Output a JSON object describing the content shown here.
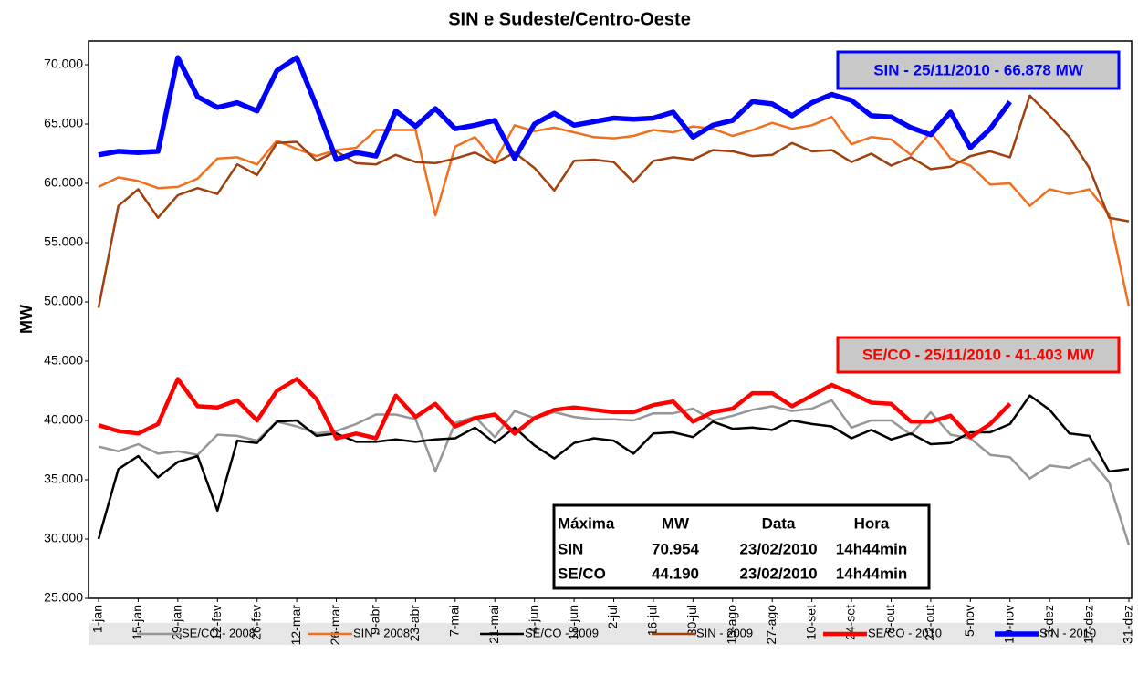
{
  "chart_data": {
    "type": "line",
    "title": "SIN e Sudeste/Centro-Oeste",
    "y_label": "MW",
    "categories": [
      "1-jan",
      null,
      "15-jan",
      null,
      "29-jan",
      null,
      "12-fev",
      null,
      "26-fev",
      null,
      "12-mar",
      null,
      "26-mar",
      null,
      "9-abr",
      null,
      "23-abr",
      null,
      "7-mai",
      null,
      "21-mai",
      null,
      "4-jun",
      null,
      "18-jun",
      null,
      "2-jul",
      null,
      "16-jul",
      null,
      "30-jul",
      null,
      "13-ago",
      null,
      "27-ago",
      null,
      "10-set",
      null,
      "24-set",
      null,
      "8-out",
      null,
      "22-out",
      null,
      "5-nov",
      null,
      "19-nov",
      null,
      "3-dez",
      null,
      "17-dez",
      null,
      "31-dez"
    ],
    "ylim": [
      25000,
      72000
    ],
    "yticks": [
      {
        "value": 25000,
        "label": "25.000"
      },
      {
        "value": 30000,
        "label": "30.000"
      },
      {
        "value": 35000,
        "label": "35.000"
      },
      {
        "value": 40000,
        "label": "40.000"
      },
      {
        "value": 45000,
        "label": "45.000"
      },
      {
        "value": 50000,
        "label": "50.000"
      },
      {
        "value": 55000,
        "label": "55.000"
      },
      {
        "value": 60000,
        "label": "60.000"
      },
      {
        "value": 65000,
        "label": "65.000"
      },
      {
        "value": 70000,
        "label": "70.000"
      }
    ],
    "grid": false,
    "legend": "bottom",
    "series": [
      {
        "name": "SE/CO - 2008",
        "color": "#969696",
        "width": 2.5,
        "values": [
          37800,
          37400,
          38000,
          37200,
          37400,
          37100,
          38800,
          38700,
          38300,
          39900,
          39500,
          38900,
          39100,
          39700,
          40500,
          40500,
          40100,
          35700,
          39800,
          40300,
          38600,
          40800,
          40200,
          40700,
          40300,
          40100,
          40100,
          40000,
          40600,
          40600,
          41000,
          40000,
          40400,
          40900,
          41200,
          40800,
          41000,
          41700,
          39400,
          40000,
          40000,
          38800,
          40700,
          38800,
          38500,
          37100,
          36900,
          35100,
          36200,
          36000,
          36800,
          34800,
          29500
        ]
      },
      {
        "name": "SIN - 2008",
        "color": "#f07020",
        "width": 2.5,
        "values": [
          59700,
          60500,
          60200,
          59600,
          59700,
          60400,
          62100,
          62200,
          61600,
          63600,
          62900,
          62300,
          62800,
          63000,
          64500,
          64500,
          64500,
          57300,
          63100,
          63900,
          61800,
          64900,
          64400,
          64700,
          64300,
          63900,
          63800,
          64000,
          64500,
          64300,
          64800,
          64600,
          64000,
          64500,
          65100,
          64600,
          64900,
          65600,
          63300,
          63900,
          63700,
          62400,
          64300,
          62100,
          61500,
          59900,
          60000,
          58100,
          59500,
          59100,
          59500,
          57400,
          49600
        ]
      },
      {
        "name": "SE/CO - 2009",
        "color": "#000000",
        "width": 2.5,
        "values": [
          30000,
          35900,
          37000,
          35200,
          36500,
          37000,
          32400,
          38300,
          38100,
          39900,
          40000,
          38700,
          38900,
          38200,
          38200,
          38400,
          38200,
          38400,
          38500,
          39400,
          38100,
          39400,
          37900,
          36800,
          38100,
          38500,
          38300,
          37200,
          38900,
          39000,
          38600,
          39900,
          39300,
          39400,
          39200,
          40000,
          39700,
          39500,
          38500,
          39200,
          38400,
          38900,
          38000,
          38100,
          39000,
          39000,
          39700,
          42100,
          40900,
          38900,
          38700,
          35700,
          35900
        ]
      },
      {
        "name": "SIN - 2009",
        "color": "#a0410d",
        "width": 2.5,
        "values": [
          49500,
          58100,
          59500,
          57100,
          59000,
          59600,
          59100,
          61600,
          60700,
          63400,
          63500,
          61900,
          62700,
          61700,
          61600,
          62400,
          61800,
          61700,
          62100,
          62600,
          61700,
          62600,
          61300,
          59400,
          61900,
          62000,
          61800,
          60100,
          61900,
          62200,
          62000,
          62800,
          62700,
          62300,
          62400,
          63400,
          62700,
          62800,
          61800,
          62500,
          61500,
          62200,
          61200,
          61400,
          62300,
          62700,
          62200,
          67400,
          65700,
          63900,
          61300,
          57100,
          56800
        ]
      },
      {
        "name": "SE/CO - 2010",
        "color": "#ff0000",
        "width": 4.5,
        "values": [
          39600,
          39100,
          38900,
          39700,
          43500,
          41200,
          41100,
          41700,
          40000,
          42500,
          43500,
          41800,
          38500,
          38900,
          38500,
          42100,
          40300,
          41400,
          39500,
          40200,
          40500,
          38900,
          40200,
          40900,
          41100,
          40900,
          40700,
          40700,
          41300,
          41600,
          39900,
          40700,
          41000,
          42300,
          42300,
          41200,
          42100,
          43000,
          42300,
          41500,
          41400,
          39900,
          39900,
          40400,
          38600,
          39700,
          41403,
          null,
          null,
          null,
          null,
          null,
          null
        ]
      },
      {
        "name": "SIN - 2010",
        "color": "#0000ff",
        "width": 5.5,
        "values": [
          62400,
          62700,
          62600,
          62700,
          70600,
          67300,
          66400,
          66800,
          66100,
          69500,
          70600,
          66500,
          62000,
          62600,
          62300,
          66100,
          64800,
          66300,
          64600,
          64900,
          65300,
          62100,
          65000,
          65900,
          64900,
          65200,
          65500,
          65400,
          65500,
          66000,
          63900,
          64900,
          65300,
          66900,
          66700,
          65700,
          66800,
          67500,
          67000,
          65700,
          65600,
          64700,
          64100,
          66000,
          63000,
          64600,
          66878,
          null,
          null,
          null,
          null,
          null,
          null
        ]
      }
    ],
    "annotations": [
      {
        "text": "SIN - 25/11/2010 - 66.878 MW",
        "color": "#0000ff"
      },
      {
        "text": "SE/CO - 25/11/2010 - 41.403 MW",
        "color": "#ff0000"
      }
    ],
    "table": {
      "header": [
        "Máxima",
        "MW",
        "Data",
        "Hora"
      ],
      "rows": [
        [
          "SIN",
          "70.954",
          "23/02/2010",
          "14h44min"
        ],
        [
          "SE/CO",
          "44.190",
          "23/02/2010",
          "14h44min"
        ]
      ]
    }
  }
}
